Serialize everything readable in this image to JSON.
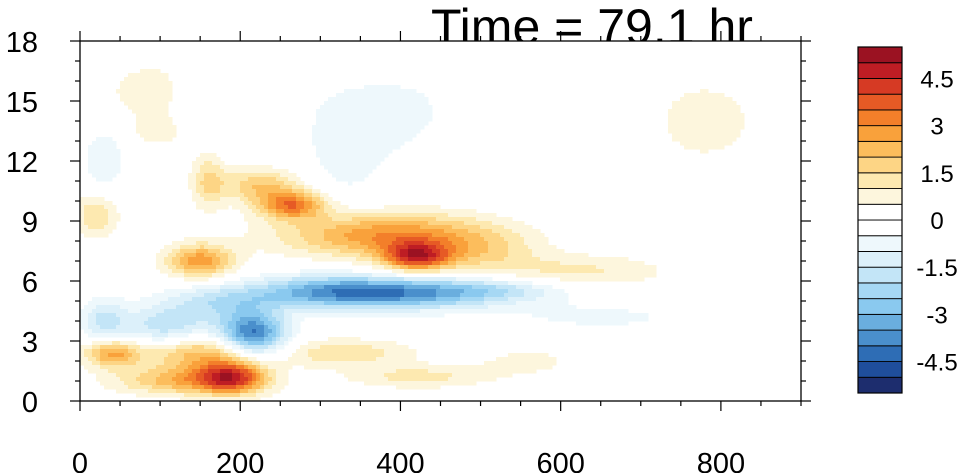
{
  "chart_data": {
    "type": "heatmap",
    "title": "Time = 79.1 hr",
    "xlim": [
      0,
      900
    ],
    "ylim": [
      0,
      18
    ],
    "x_ticks": [
      0,
      200,
      400,
      600,
      800
    ],
    "y_ticks": [
      0,
      3,
      6,
      9,
      12,
      15,
      18
    ],
    "x_tick_labels": [
      "0",
      "200",
      "400",
      "600",
      "800"
    ],
    "y_tick_labels": [
      "0",
      "3",
      "6",
      "9",
      "12",
      "15",
      "18"
    ],
    "colorbar": {
      "levels": [
        -5.5,
        -5,
        -4.5,
        -4,
        -3.5,
        -3,
        -2.5,
        -2,
        -1.5,
        -1,
        -0.5,
        0,
        0.5,
        1,
        1.5,
        2,
        2.5,
        3,
        3.5,
        4,
        4.5,
        5,
        5.5
      ],
      "labels": [
        "4.5",
        "3",
        "1.5",
        "0",
        "-1.5",
        "-3",
        "-4.5"
      ],
      "label_values": [
        4.5,
        3,
        1.5,
        0,
        -1.5,
        -3,
        -4.5
      ],
      "colors": [
        "#1d2d6e",
        "#1f4e9c",
        "#2e6db5",
        "#4a8fcc",
        "#6aaede",
        "#8ac9ef",
        "#a6d8f4",
        "#c3e5f7",
        "#dcf0fa",
        "#eef8fc",
        "#ffffff",
        "#ffffff",
        "#fdf6dd",
        "#fde9b0",
        "#fdd585",
        "#fcbd5c",
        "#f9a13b",
        "#f37f2a",
        "#e65a25",
        "#d63a24",
        "#be1d24",
        "#9b1222"
      ]
    },
    "features": [
      {
        "x": 150,
        "y": 2.5,
        "sx": 55,
        "sy": 0.7,
        "v": 2.6
      },
      {
        "x": 190,
        "y": 1.2,
        "sx": 30,
        "sy": 0.6,
        "v": 3.6
      },
      {
        "x": 130,
        "y": 1.0,
        "sx": 60,
        "sy": 0.5,
        "v": 2.2
      },
      {
        "x": 40,
        "y": 2.4,
        "sx": 25,
        "sy": 0.5,
        "v": 2.6
      },
      {
        "x": 330,
        "y": 2.4,
        "sx": 60,
        "sy": 0.5,
        "v": 1.4
      },
      {
        "x": 420,
        "y": 1.2,
        "sx": 60,
        "sy": 0.4,
        "v": 1.2
      },
      {
        "x": 215,
        "y": 3.3,
        "sx": 30,
        "sy": 0.8,
        "v": -4.5
      },
      {
        "x": 110,
        "y": 3.6,
        "sx": 40,
        "sy": 0.8,
        "v": -2.2
      },
      {
        "x": 30,
        "y": 4.0,
        "sx": 20,
        "sy": 0.8,
        "v": -1.6
      },
      {
        "x": 400,
        "y": 5.4,
        "sx": 90,
        "sy": 0.55,
        "v": -3.6
      },
      {
        "x": 300,
        "y": 5.5,
        "sx": 60,
        "sy": 0.6,
        "v": -1.8
      },
      {
        "x": 180,
        "y": 5.0,
        "sx": 50,
        "sy": 0.6,
        "v": -1.6
      },
      {
        "x": 530,
        "y": 5.6,
        "sx": 60,
        "sy": 0.4,
        "v": -1.0
      },
      {
        "x": 150,
        "y": 7.0,
        "sx": 30,
        "sy": 0.6,
        "v": 2.8
      },
      {
        "x": 380,
        "y": 8.3,
        "sx": 90,
        "sy": 0.8,
        "v": 3.0
      },
      {
        "x": 420,
        "y": 7.2,
        "sx": 30,
        "sy": 0.5,
        "v": 3.8
      },
      {
        "x": 500,
        "y": 7.5,
        "sx": 50,
        "sy": 0.8,
        "v": 1.2
      },
      {
        "x": 620,
        "y": 6.5,
        "sx": 80,
        "sy": 0.6,
        "v": 1.1
      },
      {
        "x": 265,
        "y": 9.8,
        "sx": 30,
        "sy": 0.5,
        "v": 3.2
      },
      {
        "x": 225,
        "y": 10.8,
        "sx": 35,
        "sy": 0.6,
        "v": 1.9
      },
      {
        "x": 20,
        "y": 9.3,
        "sx": 20,
        "sy": 0.8,
        "v": 1.5
      },
      {
        "x": 160,
        "y": 11.0,
        "sx": 15,
        "sy": 1.0,
        "v": 1.5
      },
      {
        "x": 90,
        "y": 15.5,
        "sx": 40,
        "sy": 1.0,
        "v": 0.9
      },
      {
        "x": 100,
        "y": 13.5,
        "sx": 25,
        "sy": 0.6,
        "v": 0.8
      },
      {
        "x": 30,
        "y": 12.0,
        "sx": 20,
        "sy": 1.2,
        "v": -0.9
      },
      {
        "x": 380,
        "y": 14.5,
        "sx": 60,
        "sy": 1.5,
        "v": -0.8
      },
      {
        "x": 330,
        "y": 12.0,
        "sx": 40,
        "sy": 2.0,
        "v": -0.6
      },
      {
        "x": 780,
        "y": 14.0,
        "sx": 80,
        "sy": 2.5,
        "v": 0.6
      },
      {
        "x": 650,
        "y": 4.2,
        "sx": 100,
        "sy": 0.6,
        "v": -0.6
      },
      {
        "x": 560,
        "y": 2.0,
        "sx": 60,
        "sy": 0.7,
        "v": 0.6
      },
      {
        "x": 140,
        "y": 15.0,
        "sx": 20,
        "sy": 1.2,
        "v": -0.6
      },
      {
        "x": 330,
        "y": 17.0,
        "sx": 60,
        "sy": 0.8,
        "v": 0.5
      }
    ]
  }
}
